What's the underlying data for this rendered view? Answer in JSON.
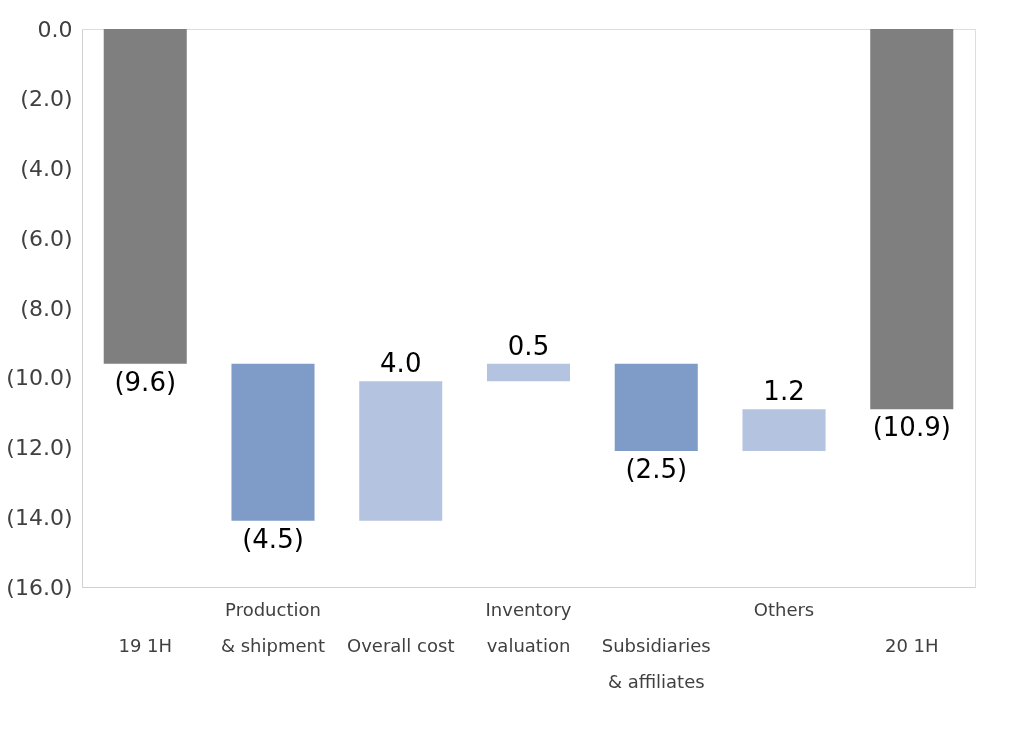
{
  "chart_data": {
    "type": "bar",
    "categories": [
      "19 1H",
      "Production\n& shipment",
      "Overall cost",
      "Inventory\nvaluation",
      "Subsidiaries\n& affiliates",
      "Others",
      "20 1H"
    ],
    "base": [
      0,
      -9.6,
      -14.1,
      -10.1,
      -9.6,
      -12.1,
      0
    ],
    "values": [
      -9.6,
      -4.5,
      4.0,
      0.5,
      -2.5,
      1.2,
      -10.9
    ],
    "colors": [
      "#7f7f7f",
      "#7f9cc8",
      "#b4c3df",
      "#b4c3df",
      "#7f9cc8",
      "#b4c3df",
      "#7f7f7f"
    ],
    "value_labels": [
      "(9.6)",
      "(4.5)",
      "4.0",
      "0.5",
      "(2.5)",
      "1.2",
      "(10.9)"
    ],
    "ylim": [
      -16,
      0
    ],
    "yticks": [
      {
        "value": 0,
        "label": "0.0"
      },
      {
        "value": -2,
        "label": "(2.0)"
      },
      {
        "value": -4,
        "label": "(4.0)"
      },
      {
        "value": -6,
        "label": "(6.0)"
      },
      {
        "value": -8,
        "label": "(8.0)"
      },
      {
        "value": -10,
        "label": "(10.0)"
      },
      {
        "value": -12,
        "label": "(12.0)"
      },
      {
        "value": -14,
        "label": "(14.0)"
      },
      {
        "value": -16,
        "label": "(16.0)"
      }
    ],
    "grid": false
  }
}
